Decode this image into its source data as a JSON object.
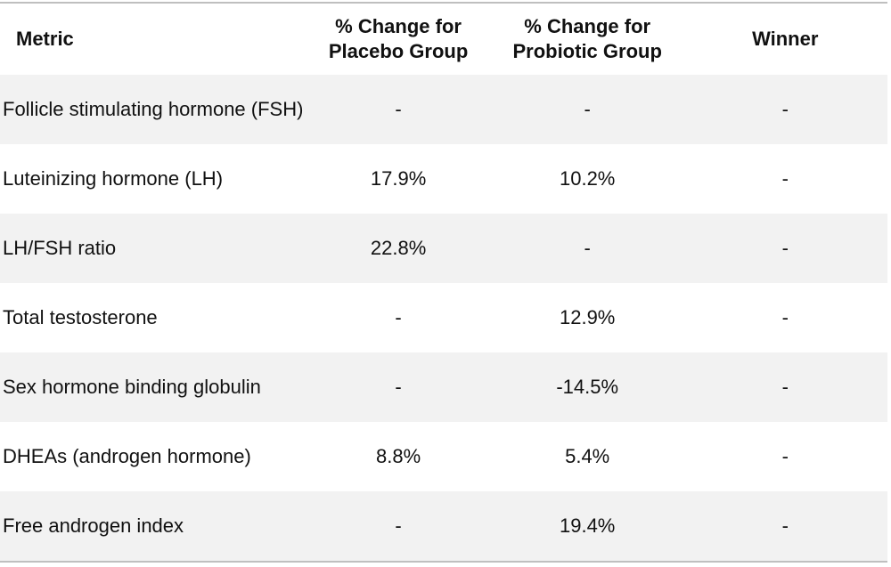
{
  "table": {
    "header": [
      "Metric",
      "% Change for Placebo Group",
      "% Change for Probiotic Group",
      "Winner"
    ],
    "rows": [
      [
        "Follicle stimulating hormone (FSH)",
        "-",
        "-",
        "-"
      ],
      [
        "Luteinizing hormone (LH)",
        "17.9%",
        "10.2%",
        "-"
      ],
      [
        "LH/FSH ratio",
        "22.8%",
        "-",
        "-"
      ],
      [
        "Total testosterone",
        "-",
        "12.9%",
        "-"
      ],
      [
        "Sex hormone binding globulin",
        "-",
        "-14.5%",
        "-"
      ],
      [
        "DHEAs (androgen hormone)",
        "8.8%",
        "5.4%",
        "-"
      ],
      [
        "Free androgen index",
        "-",
        "19.4%",
        "-"
      ]
    ]
  }
}
